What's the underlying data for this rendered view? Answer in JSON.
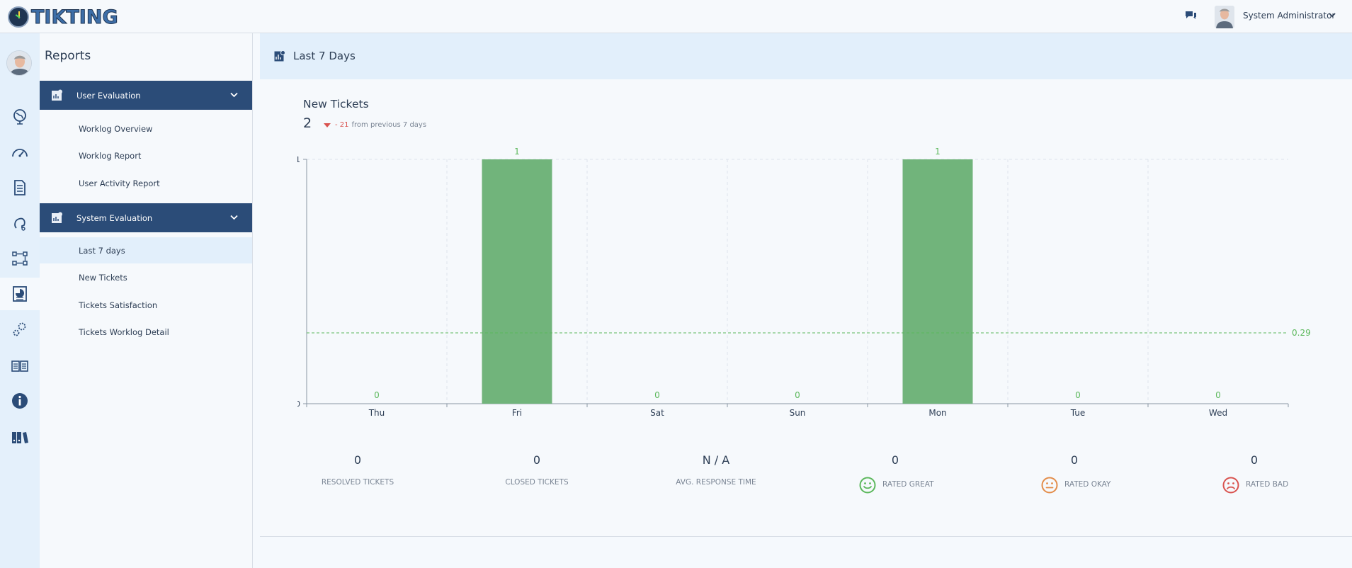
{
  "app": {
    "logo_text": "TIKTING"
  },
  "topbar": {
    "user_name": "System Administrator"
  },
  "menu": {
    "title": "Reports",
    "groups": [
      {
        "label": "User Evaluation",
        "items": [
          "Worklog Overview",
          "Worklog Report",
          "User Activity Report"
        ]
      },
      {
        "label": "System Evaluation",
        "items": [
          "Last 7 days",
          "New Tickets",
          "Tickets Satisfaction",
          "Tickets Worklog Detail"
        ]
      }
    ]
  },
  "content": {
    "title": "Last 7 Days",
    "metric": {
      "title": "New Tickets",
      "value": "2",
      "delta": "- 21",
      "delta_suffix": "from previous 7 days"
    }
  },
  "chart_data": {
    "type": "bar",
    "categories": [
      "Thu",
      "Fri",
      "Sat",
      "Sun",
      "Mon",
      "Tue",
      "Wed"
    ],
    "values": [
      0,
      1,
      0,
      0,
      1,
      0,
      0
    ],
    "ylim": [
      0,
      1
    ],
    "y_ticks": [
      "0",
      "1"
    ],
    "average_line": 0.29,
    "average_label": "0.29",
    "bar_color": "#71b47b",
    "grid": true
  },
  "stats": [
    {
      "value": "0",
      "label": "RESOLVED TICKETS"
    },
    {
      "value": "0",
      "label": "CLOSED TICKETS"
    },
    {
      "value": "N / A",
      "label": "AVG. RESPONSE TIME"
    },
    {
      "value": "0",
      "label": "RATED GREAT",
      "icon": "smile-face-icon",
      "color": "#5cb85c"
    },
    {
      "value": "0",
      "label": "RATED OKAY",
      "icon": "neutral-face-icon",
      "color": "#e38d4a"
    },
    {
      "value": "0",
      "label": "RATED BAD",
      "icon": "sad-face-icon",
      "color": "#d9534f"
    }
  ]
}
